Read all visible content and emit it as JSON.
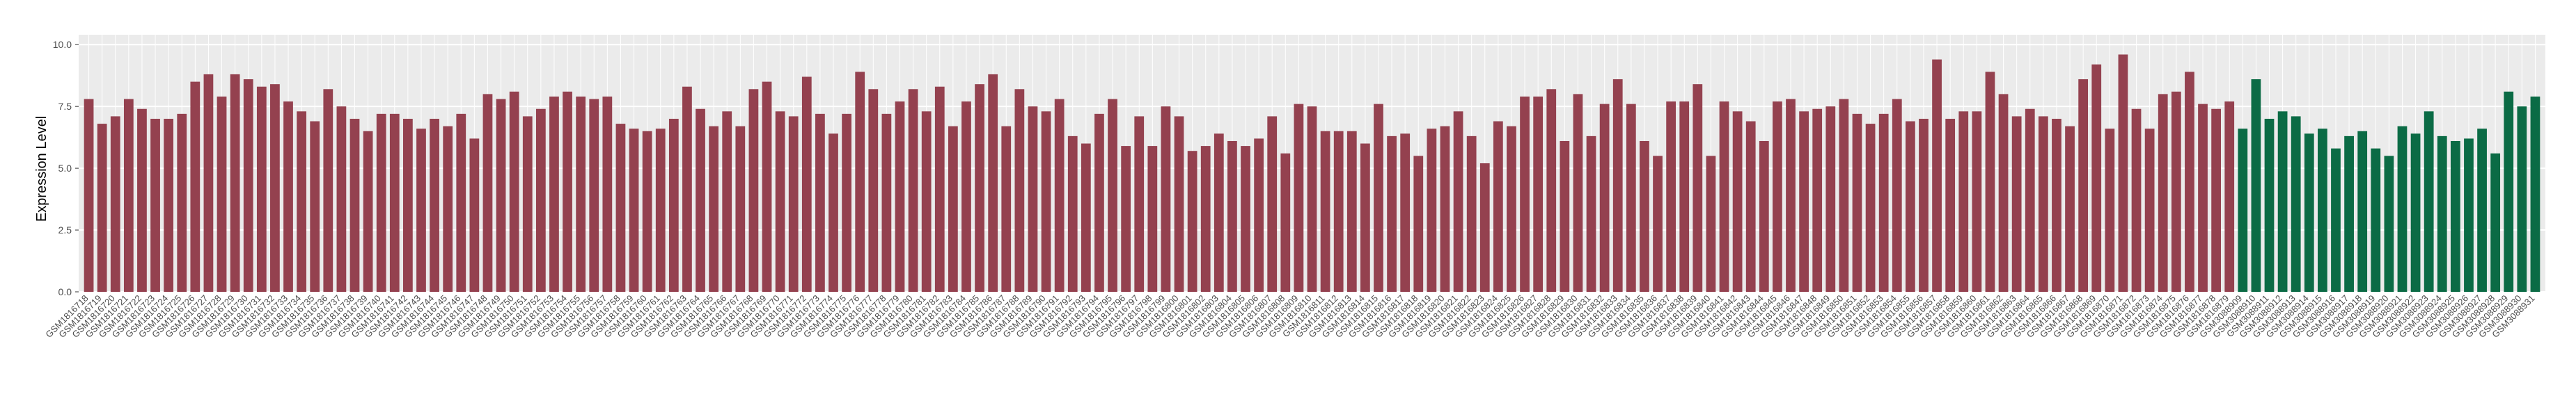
{
  "chart_data": {
    "type": "bar",
    "y_label": "Expression Level",
    "ylim": [
      0,
      10.4
    ],
    "yticks": [
      {
        "value": 0,
        "label": "0.0"
      },
      2.5,
      {
        "value": 5,
        "label": "5.0"
      },
      7.5,
      {
        "value": 10,
        "label": "10.0"
      }
    ],
    "grid": true,
    "groups": [
      {
        "color": "#94414f",
        "categories": [
          "GSM1816718",
          "GSM1816719",
          "GSM1816720",
          "GSM1816721",
          "GSM1816722",
          "GSM1816723",
          "GSM1816724",
          "GSM1816725",
          "GSM1816726",
          "GSM1816727",
          "GSM1816728",
          "GSM1816729",
          "GSM1816730",
          "GSM1816731",
          "GSM1816732",
          "GSM1816733",
          "GSM1816734",
          "GSM1816735",
          "GSM1816736",
          "GSM1816737",
          "GSM1816738",
          "GSM1816739",
          "GSM1816740",
          "GSM1816741",
          "GSM1816742",
          "GSM1816743",
          "GSM1816744",
          "GSM1816745",
          "GSM1816746",
          "GSM1816747",
          "GSM1816748",
          "GSM1816749",
          "GSM1816750",
          "GSM1816751",
          "GSM1816752",
          "GSM1816753",
          "GSM1816754",
          "GSM1816755",
          "GSM1816756",
          "GSM1816757",
          "GSM1816758",
          "GSM1816759",
          "GSM1816760",
          "GSM1816761",
          "GSM1816762",
          "GSM1816763",
          "GSM1816764",
          "GSM1816765",
          "GSM1816766",
          "GSM1816767",
          "GSM1816768",
          "GSM1816769",
          "GSM1816770",
          "GSM1816771",
          "GSM1816772",
          "GSM1816773",
          "GSM1816774",
          "GSM1816775",
          "GSM1816776",
          "GSM1816777",
          "GSM1816778",
          "GSM1816779",
          "GSM1816780",
          "GSM1816781",
          "GSM1816782",
          "GSM1816783",
          "GSM1816784",
          "GSM1816785",
          "GSM1816786",
          "GSM1816787",
          "GSM1816788",
          "GSM1816789",
          "GSM1816790",
          "GSM1816791",
          "GSM1816792",
          "GSM1816793",
          "GSM1816794",
          "GSM1816795",
          "GSM1816796",
          "GSM1816797",
          "GSM1816798",
          "GSM1816799",
          "GSM1816800",
          "GSM1816801",
          "GSM1816802",
          "GSM1816803",
          "GSM1816804",
          "GSM1816805",
          "GSM1816806",
          "GSM1816807",
          "GSM1816808",
          "GSM1816809",
          "GSM1816810",
          "GSM1816811",
          "GSM1816812",
          "GSM1816813",
          "GSM1816814",
          "GSM1816815",
          "GSM1816816",
          "GSM1816817",
          "GSM1816818",
          "GSM1816819",
          "GSM1816820",
          "GSM1816821",
          "GSM1816822",
          "GSM1816823",
          "GSM1816824",
          "GSM1816825",
          "GSM1816826",
          "GSM1816827",
          "GSM1816828",
          "GSM1816829",
          "GSM1816830",
          "GSM1816831",
          "GSM1816832",
          "GSM1816833",
          "GSM1816834",
          "GSM1816835",
          "GSM1816836",
          "GSM1816837",
          "GSM1816838",
          "GSM1816839",
          "GSM1816840",
          "GSM1816841",
          "GSM1816842",
          "GSM1816843",
          "GSM1816844",
          "GSM1816845",
          "GSM1816846",
          "GSM1816847",
          "GSM1816848",
          "GSM1816849",
          "GSM1816850",
          "GSM1816851",
          "GSM1816852",
          "GSM1816853",
          "GSM1816854",
          "GSM1816855",
          "GSM1816856",
          "GSM1816857",
          "GSM1816858",
          "GSM1816859",
          "GSM1816860",
          "GSM1816861",
          "GSM1816862",
          "GSM1816863",
          "GSM1816864",
          "GSM1816865",
          "GSM1816866",
          "GSM1816867",
          "GSM1816868",
          "GSM1816869",
          "GSM1816870",
          "GSM1816871",
          "GSM1816872",
          "GSM1816873",
          "GSM1816874",
          "GSM1816875",
          "GSM1816876",
          "GSM1816877",
          "GSM1816878",
          "GSM1816879"
        ],
        "values": [
          7.8,
          6.8,
          7.1,
          7.8,
          7.4,
          7.0,
          7.0,
          7.2,
          8.5,
          8.8,
          7.9,
          8.8,
          8.6,
          8.3,
          8.4,
          7.7,
          7.3,
          6.9,
          8.2,
          7.5,
          7.0,
          6.5,
          7.2,
          7.2,
          7.0,
          6.6,
          7.0,
          6.7,
          7.2,
          6.2,
          8.0,
          7.8,
          8.1,
          7.1,
          7.4,
          7.9,
          8.1,
          7.9,
          7.8,
          7.9,
          6.8,
          6.6,
          6.5,
          6.6,
          7.0,
          8.3,
          7.4,
          6.7,
          7.3,
          6.7,
          8.2,
          8.5,
          7.3,
          7.1,
          8.7,
          7.2,
          6.4,
          7.2,
          8.9,
          8.2,
          7.2,
          7.7,
          8.2,
          7.3,
          8.3,
          6.7,
          7.7,
          8.4,
          8.8,
          6.7,
          8.2,
          7.5,
          7.3,
          7.8,
          6.3,
          6.0,
          7.2,
          7.8,
          5.9,
          7.1,
          5.9,
          7.5,
          7.1,
          5.7,
          5.9,
          6.4,
          6.1,
          5.9,
          6.2,
          7.1,
          5.6,
          7.6,
          7.5,
          6.5,
          6.5,
          6.5,
          6.0,
          7.6,
          6.3,
          6.4,
          5.5,
          6.6,
          6.7,
          7.3,
          6.3,
          5.2,
          6.9,
          6.7,
          7.9,
          7.9,
          8.2,
          6.1,
          8.0,
          6.3,
          7.6,
          8.6,
          7.6,
          6.1,
          5.5,
          7.7,
          7.7,
          8.4,
          5.5,
          7.7,
          7.3,
          6.9,
          6.1,
          7.7,
          7.8,
          7.3,
          7.4,
          7.5,
          7.8,
          7.2,
          6.8,
          7.2,
          7.8,
          6.9,
          7.0,
          9.4,
          7.0,
          7.3,
          7.3,
          8.9,
          8.0,
          7.1,
          7.4,
          7.1,
          7.0,
          6.7,
          8.6,
          9.2,
          6.6,
          9.6,
          7.4,
          6.6,
          8.0,
          8.1,
          8.9,
          7.6,
          7.4,
          7.7
        ]
      },
      {
        "color": "#0b6b45",
        "categories": [
          "GSM3088909",
          "GSM3088910",
          "GSM3088911",
          "GSM3088912",
          "GSM3088913",
          "GSM3088914",
          "GSM3088915",
          "GSM3088916",
          "GSM3088917",
          "GSM3088918",
          "GSM3088919",
          "GSM3088920",
          "GSM3088921",
          "GSM3088922",
          "GSM3088923",
          "GSM3088924",
          "GSM3088925",
          "GSM3088926",
          "GSM3088927",
          "GSM3088928",
          "GSM3088929",
          "GSM3088930",
          "GSM3088931"
        ],
        "values": [
          6.6,
          8.6,
          7.0,
          7.3,
          7.1,
          6.4,
          6.6,
          5.8,
          6.3,
          6.5,
          5.8,
          5.5,
          6.7,
          6.4,
          7.3,
          6.3,
          6.1,
          6.2,
          6.6,
          5.6,
          8.1,
          7.5,
          7.9
        ]
      }
    ]
  }
}
